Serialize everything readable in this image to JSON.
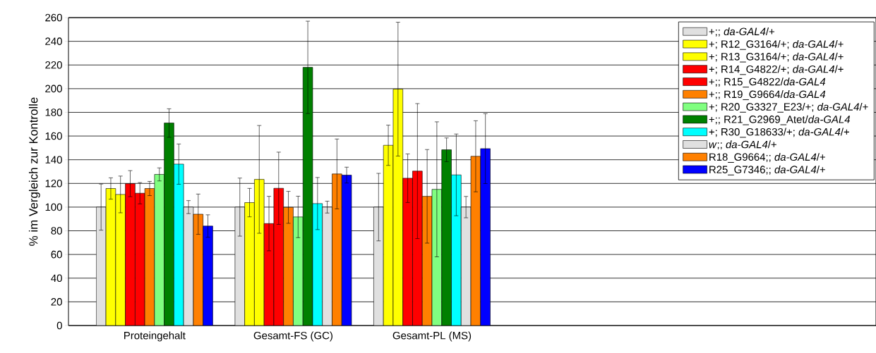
{
  "chart_data": {
    "type": "bar",
    "ylabel": "% im Vergleich zur Kontrolle",
    "categories": [
      "Proteingehalt",
      "Gesamt-FS (GC)",
      "Gesamt-PL (MS)"
    ],
    "ylim": [
      0,
      260
    ],
    "yticks": [
      0,
      20,
      40,
      60,
      80,
      100,
      120,
      140,
      160,
      180,
      200,
      220,
      240,
      260
    ],
    "grid": "y",
    "legend": "top right",
    "series": [
      {
        "name": "+;; *da-GAL4*/+",
        "color": "#e0e0e0",
        "values": [
          100,
          100,
          100
        ],
        "errors": [
          19.5,
          24.5,
          28.5
        ]
      },
      {
        "name": "+; R12_G3164/+; *da-GAL4*/+",
        "color": "#ffff00",
        "values": [
          115.7,
          103.8,
          152.2
        ],
        "errors": [
          9,
          12,
          17
        ]
      },
      {
        "name": "+; R13_G3164/+; *da-GAL4*/+",
        "color": "#ffff00",
        "values": [
          110.7,
          123.4,
          199.6
        ],
        "errors": [
          15.5,
          45.5,
          56.5
        ]
      },
      {
        "name": "+; R14_G4822/+; *da-GAL4*/+",
        "color": "#ff0000",
        "values": [
          119.8,
          86.1,
          124.4
        ],
        "errors": [
          11,
          23,
          20.5
        ]
      },
      {
        "name": "+;; R15_G4822/*da-GAL4*",
        "color": "#ff0000",
        "values": [
          111.7,
          115.9,
          130.4
        ],
        "errors": [
          9,
          30.5,
          57
        ]
      },
      {
        "name": "+;; R19_G9664/*da-GAL4*",
        "color": "#ff8000",
        "values": [
          115.7,
          99.8,
          109.1
        ],
        "errors": [
          6,
          13.5,
          39.5
        ]
      },
      {
        "name": "+; R20_G3327_E23/+; *da-GAL4*/+",
        "color": "#80ff80",
        "values": [
          127.6,
          91.7,
          115
        ],
        "errors": [
          5.5,
          17.5,
          57
        ]
      },
      {
        "name": "+;; R21_G2969_Atet/*da-GAL4*",
        "color": "#008000",
        "values": [
          171,
          218,
          148.4
        ],
        "errors": [
          12,
          39,
          10
        ]
      },
      {
        "name": "+; R30_G18633/+; *da-GAL4*/+",
        "color": "#00ffff",
        "values": [
          136.3,
          103,
          127.2
        ],
        "errors": [
          17,
          22,
          34.5
        ]
      },
      {
        "name": "*w*;; *da-GAL4*/+",
        "color": "#e0e0e0",
        "values": [
          100,
          100,
          100
        ],
        "errors": [
          5.5,
          5,
          9
        ]
      },
      {
        "name": "R18_G9664;; *da-GAL4*/+",
        "color": "#ff8000",
        "values": [
          94,
          128,
          142.9
        ],
        "errors": [
          17,
          29.5,
          30
        ]
      },
      {
        "name": "R25_G7346;; *da-GAL4*/+",
        "color": "#0000ff",
        "values": [
          84,
          127,
          149.4
        ],
        "errors": [
          9.5,
          6.7,
          29.5
        ]
      }
    ]
  }
}
